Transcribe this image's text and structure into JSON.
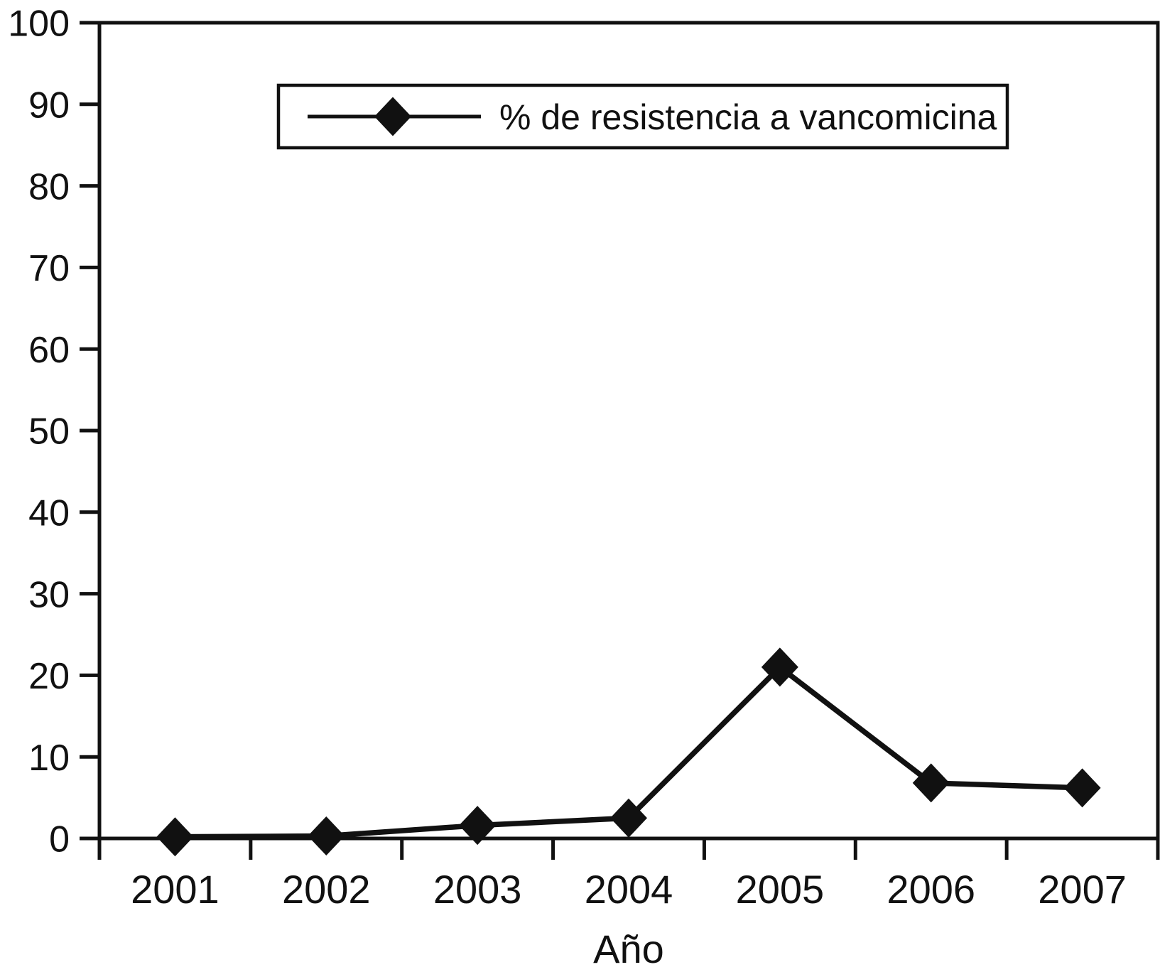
{
  "figure": {
    "background": "#ffffff",
    "ink_color": "#111111"
  },
  "chart_data": {
    "type": "line",
    "title": "",
    "xlabel": "Año",
    "ylabel": "",
    "categories": [
      "2001",
      "2002",
      "2003",
      "2004",
      "2005",
      "2006",
      "2007"
    ],
    "series": [
      {
        "name": "% de resistencia a vancomicina",
        "values": [
          0.2,
          0.3,
          1.6,
          2.5,
          21,
          6.8,
          6.2
        ],
        "marker": "diamond",
        "color": "#111111"
      }
    ],
    "ylim": [
      0,
      100
    ],
    "y_tick_step": 10,
    "y_tick_labels": [
      "0",
      "10",
      "20",
      "30",
      "40",
      "50",
      "60",
      "70",
      "80",
      "90",
      "100"
    ],
    "grid": false,
    "legend_position": "top-center-inside",
    "ticks_between_categories": true
  }
}
